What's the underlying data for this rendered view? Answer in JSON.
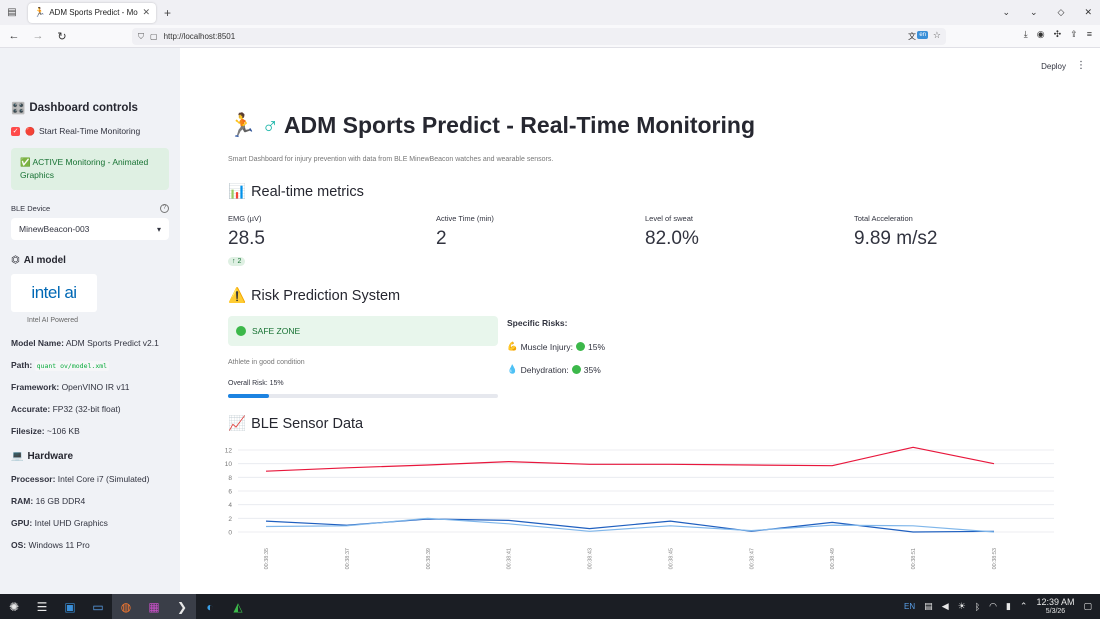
{
  "browser": {
    "tab_title": "ADM Sports Predict - Monit",
    "url": "http://localhost:8501",
    "translate_badge": "en"
  },
  "sidebar": {
    "controls_title": "Dashboard controls",
    "monitoring_checkbox_label": "Start Real-Time Monitoring",
    "active_message": "ACTIVE Monitoring - Animated Graphics",
    "ble_device_label": "BLE Device",
    "ble_device_value": "MinewBeacon-003",
    "ai_model_title": "AI model",
    "logo_text": "intel ai",
    "logo_caption": "Intel AI Powered",
    "model_info": [
      {
        "key": "Model Name:",
        "value": "ADM Sports Predict v2.1"
      },
      {
        "key": "Path:",
        "value": "quant ov/model.xml",
        "code": true
      },
      {
        "key": "Framework:",
        "value": "OpenVINO IR v11"
      },
      {
        "key": "Accurate:",
        "value": "FP32 (32-bit float)"
      },
      {
        "key": "Filesize:",
        "value": "~106 KB"
      }
    ],
    "hardware_title": "Hardware",
    "hardware_info": [
      {
        "key": "Processor:",
        "value": "Intel Core i7 (Simulated)"
      },
      {
        "key": "RAM:",
        "value": "16 GB DDR4"
      },
      {
        "key": "GPU:",
        "value": "Intel UHD Graphics"
      },
      {
        "key": "OS:",
        "value": "Windows 11 Pro"
      }
    ]
  },
  "header": {
    "deploy_label": "Deploy"
  },
  "main": {
    "title": "ADM Sports Predict - Real-Time Monitoring",
    "subtitle": "Smart Dashboard for injury prevention with data from BLE MinewBeacon watches and wearable sensors.",
    "metrics_title": "Real-time metrics",
    "metrics": [
      {
        "label": "EMG (µV)",
        "value": "28.5",
        "delta": "2"
      },
      {
        "label": "Active Time (min)",
        "value": "2"
      },
      {
        "label": "Level of sweat",
        "value": "82.0%"
      },
      {
        "label": "Total Acceleration",
        "value": "9.89 m/s2"
      }
    ],
    "risk_title": "Risk Prediction System",
    "safe_zone": "SAFE ZONE",
    "athlete_status": "Athlete in good condition",
    "overall_risk_label": "Overall Risk: 15%",
    "overall_risk_percent": 15,
    "specific_risks_title": "Specific Risks:",
    "specific_risks": [
      {
        "icon": "muscle-icon",
        "label": "Muscle Injury:",
        "value": "15%"
      },
      {
        "icon": "droplet-icon",
        "label": "Dehydration:",
        "value": "35%"
      }
    ],
    "ble_title": "BLE Sensor Data"
  },
  "chart_data": {
    "type": "line",
    "x": [
      "00:38:35",
      "00:38:37",
      "00:38:39",
      "00:38:41",
      "00:38:43",
      "00:38:45",
      "00:38:47",
      "00:38:49",
      "00:38:51",
      "00:38:53"
    ],
    "ylim": [
      0,
      12
    ],
    "yticks": [
      0,
      2,
      4,
      6,
      8,
      10,
      12
    ],
    "grid": true,
    "series": [
      {
        "color": "#e8173c",
        "values": [
          8.9,
          9.4,
          9.8,
          10.3,
          9.9,
          9.9,
          9.8,
          9.7,
          12.4,
          10.0
        ]
      },
      {
        "color": "#1f5fbf",
        "values": [
          1.6,
          1.0,
          1.9,
          1.7,
          0.5,
          1.6,
          0.1,
          1.4,
          0.0,
          0.1
        ]
      },
      {
        "color": "#7fb6ea",
        "values": [
          0.8,
          0.9,
          2.0,
          1.2,
          0.1,
          0.9,
          0.2,
          1.0,
          0.9,
          0.0
        ]
      }
    ]
  },
  "taskbar": {
    "lang": "EN",
    "time": "12:39 AM",
    "date": "5/3/26"
  }
}
